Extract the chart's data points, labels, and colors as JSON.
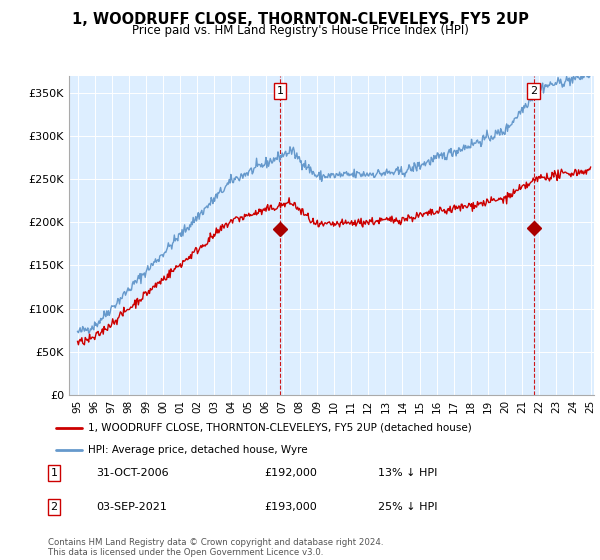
{
  "title": "1, WOODRUFF CLOSE, THORNTON-CLEVELEYS, FY5 2UP",
  "subtitle": "Price paid vs. HM Land Registry's House Price Index (HPI)",
  "legend_line1": "1, WOODRUFF CLOSE, THORNTON-CLEVELEYS, FY5 2UP (detached house)",
  "legend_line2": "HPI: Average price, detached house, Wyre",
  "annotation1_label": "1",
  "annotation1_date": "31-OCT-2006",
  "annotation1_price": "£192,000",
  "annotation1_hpi": "13% ↓ HPI",
  "annotation2_label": "2",
  "annotation2_date": "03-SEP-2021",
  "annotation2_price": "£193,000",
  "annotation2_hpi": "25% ↓ HPI",
  "footer": "Contains HM Land Registry data © Crown copyright and database right 2024.\nThis data is licensed under the Open Government Licence v3.0.",
  "hpi_color": "#6699cc",
  "price_color": "#cc0000",
  "vline_color": "#cc0000",
  "dot_color": "#aa0000",
  "plot_bg_color": "#ddeeff",
  "ylim": [
    0,
    370000
  ],
  "yticks": [
    0,
    50000,
    100000,
    150000,
    200000,
    250000,
    300000,
    350000
  ],
  "ytick_labels": [
    "£0",
    "£50K",
    "£100K",
    "£150K",
    "£200K",
    "£250K",
    "£300K",
    "£350K"
  ],
  "anno1_x_year": 2006.83,
  "anno1_y": 192000,
  "anno2_x_year": 2021.67,
  "anno2_y": 193000,
  "xmin": 1995,
  "xmax": 2025
}
